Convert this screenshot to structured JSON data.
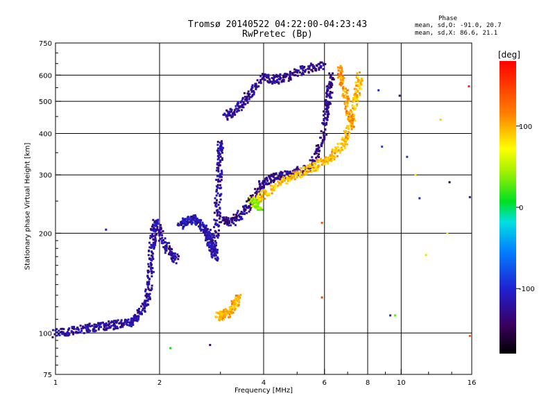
{
  "chart_data": {
    "type": "scatter",
    "title": "Tromsø 20140522 04:22:00-04:23:43",
    "subtitle": "RwPretec (Bp)",
    "xlabel": "Frequency [MHz]",
    "ylabel": "Stationary phase Virtual Height [km]",
    "x_scale": "log",
    "y_scale": "log",
    "xlim": [
      1,
      16
    ],
    "ylim": [
      75,
      750
    ],
    "x_ticks": [
      1,
      2,
      4,
      6,
      8,
      10,
      16
    ],
    "x_gridlines": [
      2,
      4,
      6,
      8,
      10
    ],
    "y_ticks": [
      75,
      100,
      200,
      300,
      400,
      500,
      600,
      750
    ],
    "y_gridlines": [
      100,
      200,
      300,
      400,
      500,
      600
    ],
    "grid": true,
    "phase_stats": {
      "title": "Phase",
      "o_mode": "mean, sd,O: -91.0, 20.7",
      "x_mode": "mean, sd,X:  86.6, 21.1"
    },
    "colorbar": {
      "label": "[deg]",
      "range": [
        -180,
        180
      ],
      "ticks": [
        100,
        0,
        -100
      ]
    },
    "traces": [
      {
        "mode": "O",
        "phase": -120,
        "points": [
          [
            1.0,
            100
          ],
          [
            1.1,
            101
          ],
          [
            1.2,
            103
          ],
          [
            1.3,
            104
          ],
          [
            1.4,
            105
          ],
          [
            1.5,
            106
          ],
          [
            1.6,
            107
          ],
          [
            1.7,
            110
          ],
          [
            1.8,
            118
          ],
          [
            1.85,
            130
          ],
          [
            1.88,
            150
          ],
          [
            1.9,
            175
          ],
          [
            1.92,
            200
          ],
          [
            1.95,
            215
          ],
          [
            2.05,
            190
          ],
          [
            2.15,
            175
          ],
          [
            2.25,
            165
          ]
        ]
      },
      {
        "mode": "O",
        "phase": -115,
        "points": [
          [
            2.3,
            210
          ],
          [
            2.4,
            218
          ],
          [
            2.5,
            222
          ],
          [
            2.6,
            215
          ],
          [
            2.7,
            205
          ],
          [
            2.75,
            200
          ],
          [
            2.8,
            190
          ],
          [
            2.85,
            180
          ],
          [
            2.9,
            170
          ]
        ]
      },
      {
        "mode": "O",
        "phase": -120,
        "points": [
          [
            2.9,
            170
          ],
          [
            2.92,
            210
          ],
          [
            2.95,
            250
          ],
          [
            2.97,
            300
          ],
          [
            2.99,
            350
          ],
          [
            3.0,
            380
          ]
        ]
      },
      {
        "mode": "O",
        "phase": -130,
        "points": [
          [
            3.05,
            220
          ],
          [
            3.2,
            215
          ],
          [
            3.4,
            225
          ],
          [
            3.6,
            240
          ],
          [
            3.8,
            262
          ],
          [
            4.0,
            285
          ],
          [
            4.3,
            295
          ],
          [
            4.6,
            300
          ],
          [
            5.0,
            305
          ],
          [
            5.5,
            320
          ],
          [
            5.8,
            360
          ],
          [
            6.0,
            420
          ],
          [
            6.1,
            480
          ],
          [
            6.2,
            540
          ],
          [
            6.3,
            610
          ]
        ]
      },
      {
        "mode": "O",
        "phase": -125,
        "points": [
          [
            3.1,
            450
          ],
          [
            3.3,
            470
          ],
          [
            3.5,
            500
          ],
          [
            3.7,
            540
          ],
          [
            4.0,
            590
          ],
          [
            4.3,
            580
          ],
          [
            4.6,
            590
          ],
          [
            5.0,
            610
          ],
          [
            5.5,
            630
          ],
          [
            6.0,
            640
          ]
        ]
      },
      {
        "mode": "X",
        "phase": 100,
        "points": [
          [
            2.95,
            112
          ],
          [
            3.05,
            113
          ],
          [
            3.15,
            115
          ],
          [
            3.3,
            122
          ],
          [
            3.4,
            130
          ]
        ]
      },
      {
        "mode": "X",
        "phase": 95,
        "points": [
          [
            3.8,
            250
          ],
          [
            4.0,
            262
          ],
          [
            4.4,
            280
          ],
          [
            4.8,
            295
          ],
          [
            5.2,
            305
          ],
          [
            5.6,
            318
          ],
          [
            6.0,
            330
          ],
          [
            6.3,
            340
          ],
          [
            6.6,
            355
          ],
          [
            6.9,
            380
          ],
          [
            7.1,
            420
          ],
          [
            7.3,
            470
          ],
          [
            7.5,
            540
          ],
          [
            7.6,
            600
          ]
        ]
      },
      {
        "mode": "X",
        "phase": 110,
        "points": [
          [
            6.6,
            630
          ],
          [
            6.8,
            560
          ],
          [
            7.0,
            480
          ],
          [
            7.2,
            420
          ]
        ]
      },
      {
        "mode": "X",
        "phase": 40,
        "points": [
          [
            3.7,
            250
          ],
          [
            3.8,
            245
          ],
          [
            3.9,
            240
          ]
        ]
      }
    ],
    "scattered_points": [
      {
        "x": 1.4,
        "y": 205,
        "phase": -110
      },
      {
        "x": 2.15,
        "y": 90,
        "phase": 10
      },
      {
        "x": 2.8,
        "y": 92,
        "phase": -140
      },
      {
        "x": 5.9,
        "y": 215,
        "phase": 140
      },
      {
        "x": 5.9,
        "y": 128,
        "phase": 150
      },
      {
        "x": 8.6,
        "y": 540,
        "phase": -100
      },
      {
        "x": 8.8,
        "y": 365,
        "phase": -80
      },
      {
        "x": 9.3,
        "y": 113,
        "phase": -100
      },
      {
        "x": 9.6,
        "y": 113,
        "phase": 30
      },
      {
        "x": 9.9,
        "y": 520,
        "phase": -140
      },
      {
        "x": 10.4,
        "y": 340,
        "phase": -90
      },
      {
        "x": 11.0,
        "y": 300,
        "phase": 80
      },
      {
        "x": 11.3,
        "y": 255,
        "phase": -100
      },
      {
        "x": 11.8,
        "y": 172,
        "phase": 60
      },
      {
        "x": 13.0,
        "y": 440,
        "phase": 90
      },
      {
        "x": 13.6,
        "y": 200,
        "phase": 70
      },
      {
        "x": 13.8,
        "y": 285,
        "phase": -160
      },
      {
        "x": 15.7,
        "y": 555,
        "phase": 160
      },
      {
        "x": 15.8,
        "y": 257,
        "phase": -120
      },
      {
        "x": 15.8,
        "y": 98,
        "phase": 130
      }
    ]
  }
}
